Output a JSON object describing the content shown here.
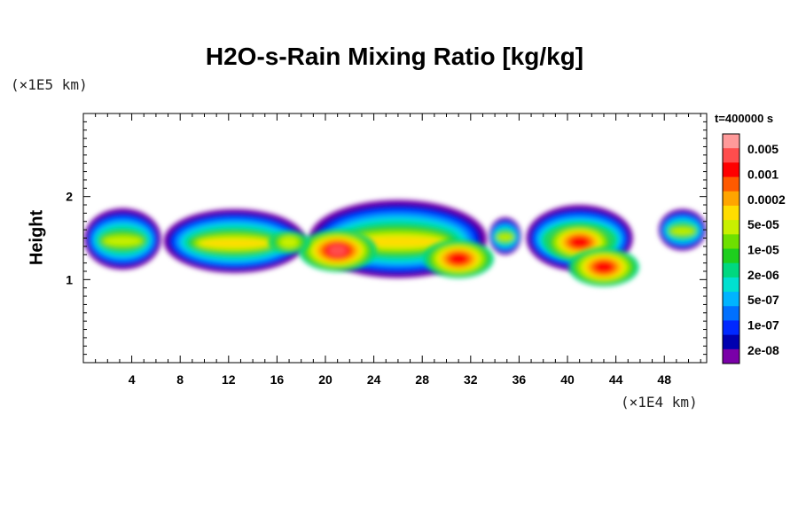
{
  "chart_data": {
    "type": "heatmap",
    "title": "H2O-s-Rain Mixing Ratio [kg/kg]",
    "ylabel": "Height",
    "xlabel": "",
    "x_unit_label": "(×1E4 km)",
    "y_unit_label": "(×1E5 km)",
    "time_label": "t=400000 s",
    "xlim": [
      0,
      51.5
    ],
    "ylim": [
      0,
      3
    ],
    "x_ticks": [
      4,
      8,
      12,
      16,
      20,
      24,
      28,
      32,
      36,
      40,
      44,
      48
    ],
    "y_ticks": [
      1,
      2
    ],
    "colorbar": {
      "labels": [
        "0.005",
        "0.001",
        "0.0002",
        "5e-05",
        "1e-05",
        "2e-06",
        "5e-07",
        "1e-07",
        "2e-08"
      ],
      "colors": [
        "#ff9a9a",
        "#ff4d4d",
        "#ff0000",
        "#ff5a00",
        "#ffa500",
        "#ffdd00",
        "#c8f000",
        "#6ee000",
        "#1ecf1e",
        "#00d880",
        "#00e0d0",
        "#00b4ff",
        "#0070ff",
        "#0028ff",
        "#0000b0",
        "#7a00a8"
      ]
    },
    "cloud_bands": [
      {
        "x_start": 0.0,
        "x_end": 6.5,
        "y_bottom": 1.12,
        "y_top": 1.86,
        "peak_level": 9
      },
      {
        "x_start": 6.5,
        "x_end": 18.5,
        "y_bottom": 1.08,
        "y_top": 1.85,
        "peak_level": 10
      },
      {
        "x_start": 18.5,
        "x_end": 33.5,
        "y_bottom": 1.02,
        "y_top": 1.96,
        "peak_level": 14
      },
      {
        "x_start": 33.5,
        "x_end": 36.2,
        "y_bottom": 1.3,
        "y_top": 1.75,
        "peak_level": 9
      },
      {
        "x_start": 36.5,
        "x_end": 45.5,
        "y_bottom": 1.1,
        "y_top": 1.9,
        "peak_level": 13
      },
      {
        "x_start": 47.5,
        "x_end": 51.5,
        "y_bottom": 1.35,
        "y_top": 1.85,
        "peak_level": 9
      }
    ],
    "hotspots": [
      {
        "x": 21.0,
        "y": 1.35,
        "level": 14
      },
      {
        "x": 31.0,
        "y": 1.25,
        "level": 13
      },
      {
        "x": 41.0,
        "y": 1.45,
        "level": 13
      },
      {
        "x": 43.0,
        "y": 1.15,
        "level": 13
      },
      {
        "x": 17.0,
        "y": 1.45,
        "level": 9
      }
    ]
  }
}
